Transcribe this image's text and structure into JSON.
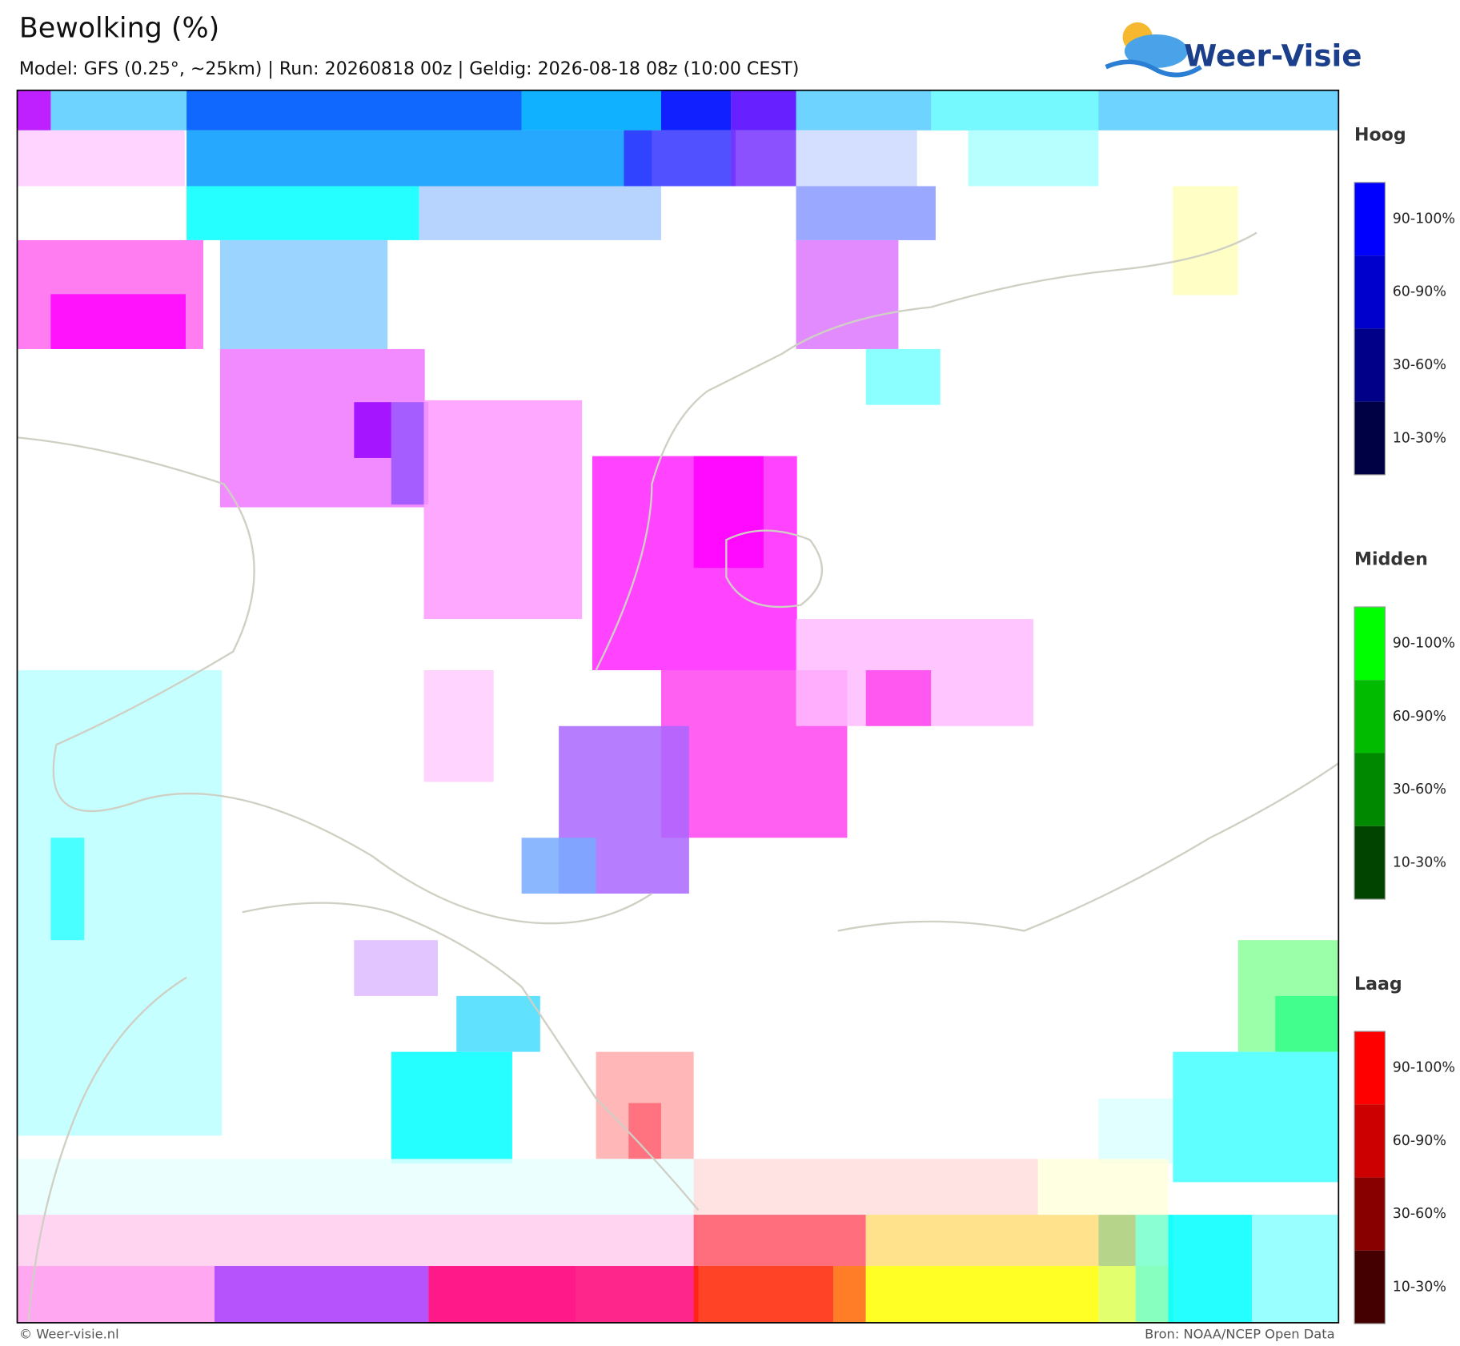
{
  "header": {
    "title": "Bewolking (%)",
    "subtitle": "Model: GFS (0.25°, ~25km)  |  Run: 20260818 00z  |  Geldig: 2026-08-18 08z (10:00 CEST)",
    "logo": "Weer-Visie"
  },
  "legend": [
    {
      "title": "Hoog",
      "levels": [
        "90-100%",
        "60-90%",
        "30-60%",
        "10-30%"
      ]
    },
    {
      "title": "Midden",
      "levels": [
        "90-100%",
        "60-90%",
        "30-60%",
        "10-30%"
      ]
    },
    {
      "title": "Laag",
      "levels": [
        "90-100%",
        "60-90%",
        "30-60%",
        "10-30%"
      ]
    }
  ],
  "footer": {
    "left": "© Weer-visie.nl",
    "right": "Bron: NOAA/NCEP Open Data"
  }
}
